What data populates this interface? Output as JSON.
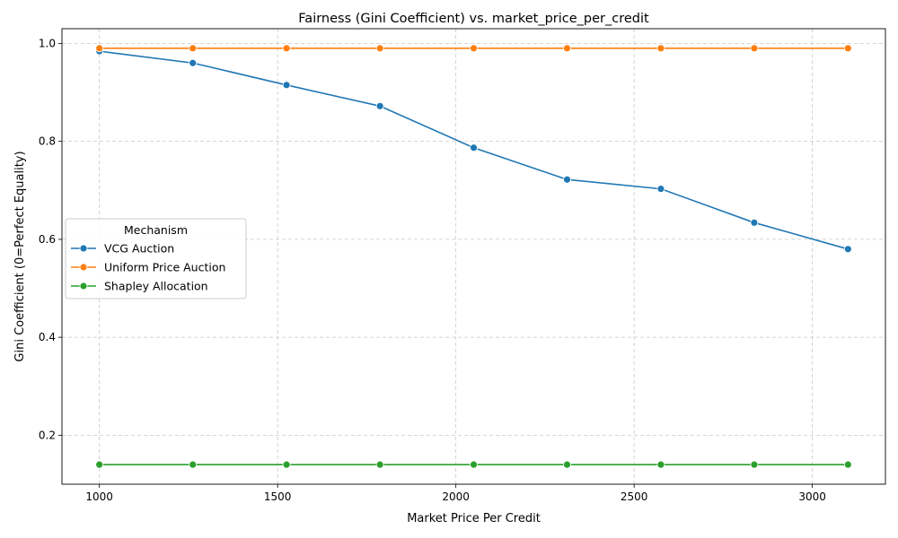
{
  "chart_data": {
    "type": "line",
    "title": "Fairness (Gini Coefficient) vs. market_price_per_credit",
    "xlabel": "Market Price Per Credit",
    "ylabel": "Gini Coefficient (0=Perfect Equality)",
    "xlim": [
      895,
      3205
    ],
    "ylim": [
      0.1,
      1.03
    ],
    "xticks": [
      1000,
      1500,
      2000,
      2500,
      3000
    ],
    "yticks": [
      0.2,
      0.4,
      0.6,
      0.8,
      1.0
    ],
    "xtick_labels": [
      "1000",
      "1500",
      "2000",
      "2500",
      "3000"
    ],
    "ytick_labels": [
      "0.2",
      "0.4",
      "0.6",
      "0.8",
      "1.0"
    ],
    "grid": true,
    "legend": {
      "title": "Mechanism",
      "placement": "center-left"
    },
    "x": [
      1000,
      1262,
      1525,
      1787,
      2050,
      2312,
      2575,
      2837,
      3100
    ],
    "series": [
      {
        "name": "VCG Auction",
        "color": "#1f77b4",
        "values": [
          0.984,
          0.96,
          0.915,
          0.872,
          0.787,
          0.722,
          0.703,
          0.634,
          0.58
        ]
      },
      {
        "name": "Uniform Price Auction",
        "color": "#ff7f0e",
        "values": [
          0.99,
          0.99,
          0.99,
          0.99,
          0.99,
          0.99,
          0.99,
          0.99,
          0.99
        ]
      },
      {
        "name": "Shapley Allocation",
        "color": "#2ca02c",
        "values": [
          0.14,
          0.14,
          0.14,
          0.14,
          0.14,
          0.14,
          0.14,
          0.14,
          0.14
        ]
      }
    ]
  }
}
